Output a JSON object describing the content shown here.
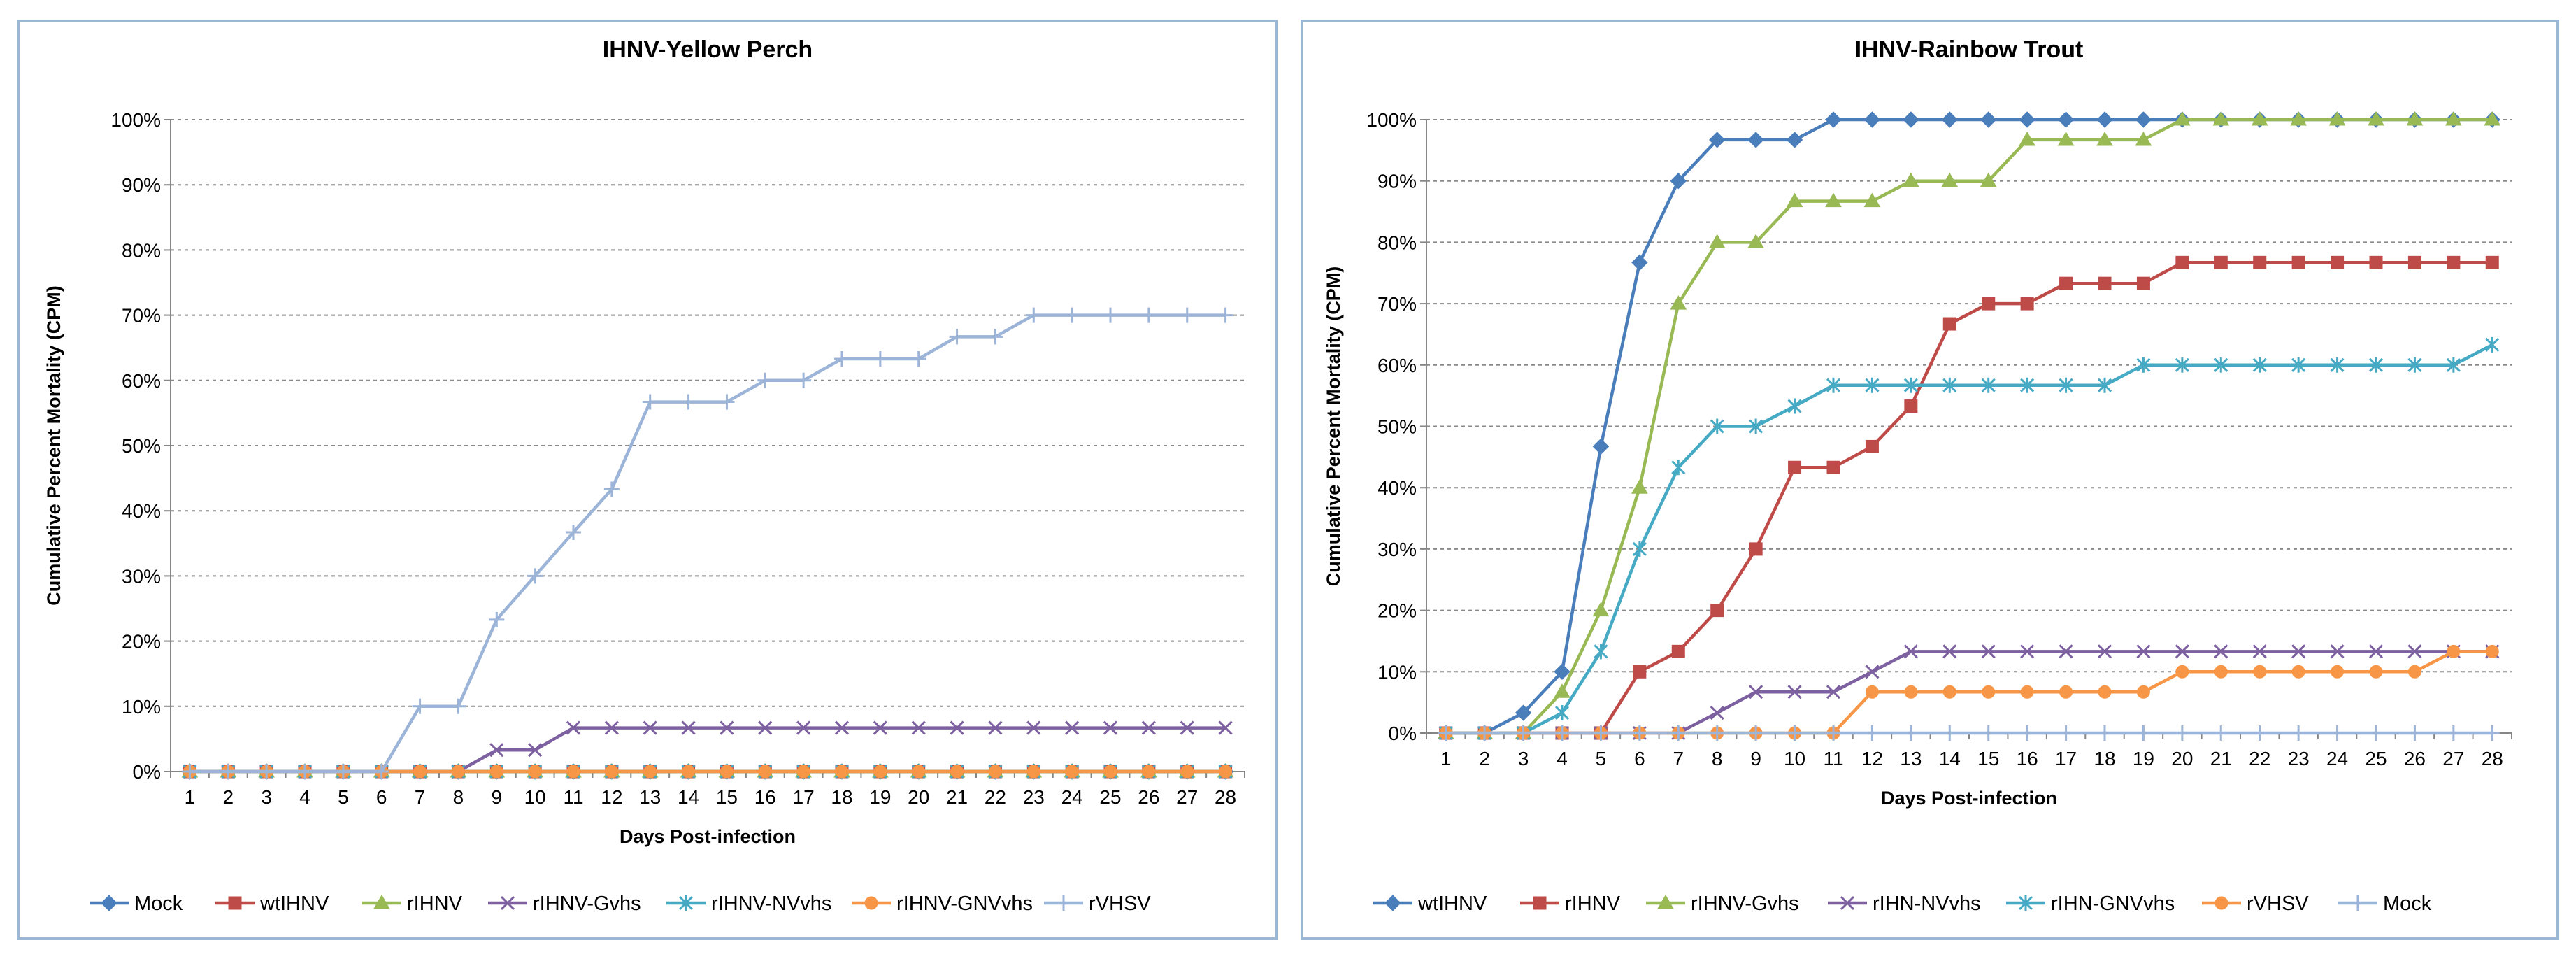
{
  "chart_data": [
    {
      "type": "line",
      "title": "IHNV-Yellow Perch",
      "xlabel": "Days Post-infection",
      "ylabel": "Cumulative Percent Mortality (CPM)",
      "ylim": [
        0,
        100
      ],
      "yticks": [
        "0%",
        "10%",
        "20%",
        "30%",
        "40%",
        "50%",
        "60%",
        "70%",
        "80%",
        "90%",
        "100%"
      ],
      "legend_position": "bottom",
      "grid": true,
      "categories": [
        "1",
        "2",
        "3",
        "4",
        "5",
        "6",
        "7",
        "8",
        "9",
        "10",
        "11",
        "12",
        "13",
        "14",
        "15",
        "16",
        "17",
        "18",
        "19",
        "20",
        "21",
        "22",
        "23",
        "24",
        "25",
        "26",
        "27",
        "28"
      ],
      "series": [
        {
          "name": "Mock",
          "color": "#4a7ebb",
          "marker": "diamond",
          "values": [
            0,
            0,
            0,
            0,
            0,
            0,
            0,
            0,
            0,
            0,
            0,
            0,
            0,
            0,
            0,
            0,
            0,
            0,
            0,
            0,
            0,
            0,
            0,
            0,
            0,
            0,
            0,
            0
          ]
        },
        {
          "name": "wtIHNV",
          "color": "#be4b48",
          "marker": "square",
          "values": [
            0,
            0,
            0,
            0,
            0,
            0,
            0,
            0,
            0,
            0,
            0,
            0,
            0,
            0,
            0,
            0,
            0,
            0,
            0,
            0,
            0,
            0,
            0,
            0,
            0,
            0,
            0,
            0
          ]
        },
        {
          "name": "rIHNV",
          "color": "#98b954",
          "marker": "triangle",
          "values": [
            0,
            0,
            0,
            0,
            0,
            0,
            0,
            0,
            0,
            0,
            0,
            0,
            0,
            0,
            0,
            0,
            0,
            0,
            0,
            0,
            0,
            0,
            0,
            0,
            0,
            0,
            0,
            0
          ]
        },
        {
          "name": "rIHNV-Gvhs",
          "color": "#7d60a0",
          "marker": "x",
          "values": [
            0,
            0,
            0,
            0,
            0,
            0,
            0,
            0,
            3.3,
            3.3,
            6.7,
            6.7,
            6.7,
            6.7,
            6.7,
            6.7,
            6.7,
            6.7,
            6.7,
            6.7,
            6.7,
            6.7,
            6.7,
            6.7,
            6.7,
            6.7,
            6.7,
            6.7
          ]
        },
        {
          "name": "rIHNV-NVvhs",
          "color": "#46aac5",
          "marker": "star",
          "values": [
            0,
            0,
            0,
            0,
            0,
            0,
            0,
            0,
            0,
            0,
            0,
            0,
            0,
            0,
            0,
            0,
            0,
            0,
            0,
            0,
            0,
            0,
            0,
            0,
            0,
            0,
            0,
            0
          ]
        },
        {
          "name": "rIHNV-GNVvhs",
          "color": "#f79646",
          "marker": "circle",
          "values": [
            0,
            0,
            0,
            0,
            0,
            0,
            0,
            0,
            0,
            0,
            0,
            0,
            0,
            0,
            0,
            0,
            0,
            0,
            0,
            0,
            0,
            0,
            0,
            0,
            0,
            0,
            0,
            0
          ]
        },
        {
          "name": "rVHSV",
          "color": "#9cb4d8",
          "marker": "plus",
          "values": [
            0,
            0,
            0,
            0,
            0,
            0,
            10,
            10,
            23.3,
            30,
            36.7,
            43.3,
            56.7,
            56.7,
            56.7,
            60,
            60,
            63.3,
            63.3,
            63.3,
            66.7,
            66.7,
            70,
            70,
            70,
            70,
            70,
            70
          ]
        }
      ]
    },
    {
      "type": "line",
      "title": "IHNV-Rainbow Trout",
      "xlabel": "Days Post-infection",
      "ylabel": "Cumulative Percent Mortality (CPM)",
      "ylim": [
        0,
        100
      ],
      "yticks": [
        "0%",
        "10%",
        "20%",
        "30%",
        "40%",
        "50%",
        "60%",
        "70%",
        "80%",
        "90%",
        "100%"
      ],
      "legend_position": "bottom",
      "grid": true,
      "categories": [
        "1",
        "2",
        "3",
        "4",
        "5",
        "6",
        "7",
        "8",
        "9",
        "10",
        "11",
        "12",
        "13",
        "14",
        "15",
        "16",
        "17",
        "18",
        "19",
        "20",
        "21",
        "22",
        "23",
        "24",
        "25",
        "26",
        "27",
        "28"
      ],
      "series": [
        {
          "name": "wtIHNV",
          "color": "#4a7ebb",
          "marker": "diamond",
          "values": [
            0,
            0,
            3.3,
            10,
            46.7,
            76.7,
            90,
            96.7,
            96.7,
            96.7,
            100,
            100,
            100,
            100,
            100,
            100,
            100,
            100,
            100,
            100,
            100,
            100,
            100,
            100,
            100,
            100,
            100,
            100
          ]
        },
        {
          "name": "rIHNV",
          "color": "#be4b48",
          "marker": "square",
          "values": [
            0,
            0,
            0,
            0,
            0,
            10,
            13.3,
            20,
            30,
            43.3,
            43.3,
            46.7,
            53.3,
            66.7,
            70,
            70,
            73.3,
            73.3,
            73.3,
            76.7,
            76.7,
            76.7,
            76.7,
            76.7,
            76.7,
            76.7,
            76.7,
            76.7
          ]
        },
        {
          "name": "rIHNV-Gvhs",
          "color": "#98b954",
          "marker": "triangle",
          "values": [
            0,
            0,
            0,
            6.7,
            20,
            40,
            70,
            80,
            80,
            86.7,
            86.7,
            86.7,
            90,
            90,
            90,
            96.7,
            96.7,
            96.7,
            96.7,
            100,
            100,
            100,
            100,
            100,
            100,
            100,
            100,
            100
          ]
        },
        {
          "name": "rIHN-NVvhs",
          "color": "#7d60a0",
          "marker": "x",
          "values": [
            0,
            0,
            0,
            0,
            0,
            0,
            0,
            3.3,
            6.7,
            6.7,
            6.7,
            10,
            13.3,
            13.3,
            13.3,
            13.3,
            13.3,
            13.3,
            13.3,
            13.3,
            13.3,
            13.3,
            13.3,
            13.3,
            13.3,
            13.3,
            13.3,
            13.3
          ]
        },
        {
          "name": "rIHN-GNVvhs",
          "color": "#46aac5",
          "marker": "star",
          "values": [
            0,
            0,
            0,
            3.3,
            13.3,
            30,
            43.3,
            50,
            50,
            53.3,
            56.7,
            56.7,
            56.7,
            56.7,
            56.7,
            56.7,
            56.7,
            56.7,
            60,
            60,
            60,
            60,
            60,
            60,
            60,
            60,
            60,
            63.3
          ]
        },
        {
          "name": "rVHSV",
          "color": "#f79646",
          "marker": "circle",
          "values": [
            0,
            0,
            0,
            0,
            0,
            0,
            0,
            0,
            0,
            0,
            0,
            6.7,
            6.7,
            6.7,
            6.7,
            6.7,
            6.7,
            6.7,
            6.7,
            10,
            10,
            10,
            10,
            10,
            10,
            10,
            13.3,
            13.3
          ]
        },
        {
          "name": "Mock",
          "color": "#9cb4d8",
          "marker": "plus",
          "values": [
            0,
            0,
            0,
            0,
            0,
            0,
            0,
            0,
            0,
            0,
            0,
            0,
            0,
            0,
            0,
            0,
            0,
            0,
            0,
            0,
            0,
            0,
            0,
            0,
            0,
            0,
            0,
            0
          ]
        }
      ]
    }
  ]
}
